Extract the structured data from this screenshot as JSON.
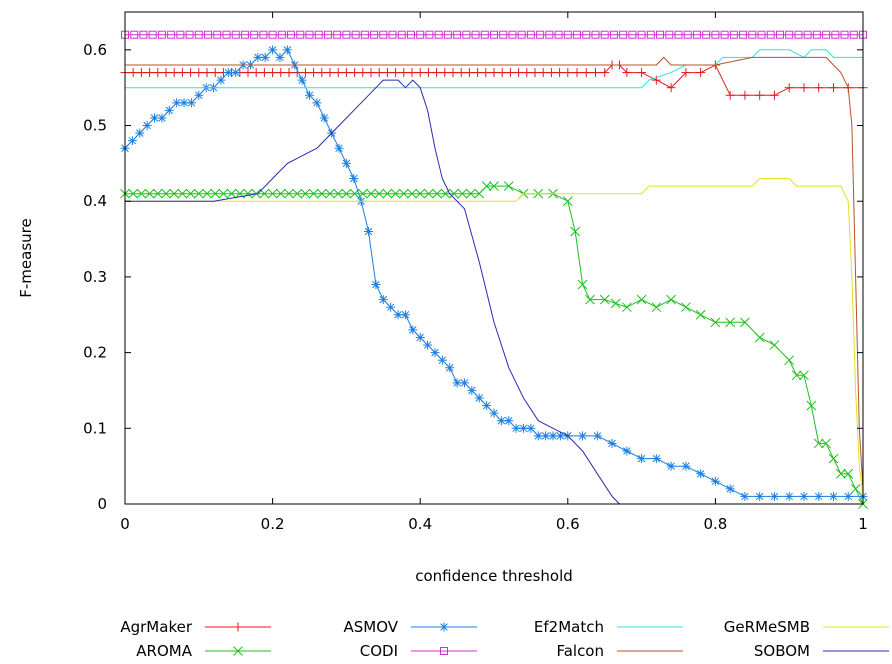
{
  "chart_data": {
    "type": "line",
    "title": "",
    "xlabel": "confidence threshold",
    "ylabel": "F-measure",
    "xlim": [
      0,
      1
    ],
    "ylim": [
      0,
      0.65
    ],
    "grid": false,
    "legend_position": "bottom",
    "x_ticks": [
      {
        "value": 0,
        "label": "0"
      },
      {
        "value": 0.2,
        "label": "0.2"
      },
      {
        "value": 0.4,
        "label": "0.4"
      },
      {
        "value": 0.6,
        "label": "0.6"
      },
      {
        "value": 0.8,
        "label": "0.8"
      },
      {
        "value": 1,
        "label": "1"
      }
    ],
    "y_ticks": [
      {
        "value": 0,
        "label": "0"
      },
      {
        "value": 0.1,
        "label": "0.1"
      },
      {
        "value": 0.2,
        "label": "0.2"
      },
      {
        "value": 0.3,
        "label": "0.3"
      },
      {
        "value": 0.4,
        "label": "0.4"
      },
      {
        "value": 0.5,
        "label": "0.5"
      },
      {
        "value": 0.6,
        "label": "0.6"
      }
    ],
    "series": [
      {
        "name": "AgrMaker",
        "color": "#e41a1c",
        "marker": "plus",
        "x": [
          0,
          0.1,
          0.2,
          0.3,
          0.4,
          0.5,
          0.6,
          0.65,
          0.66,
          0.67,
          0.68,
          0.7,
          0.72,
          0.74,
          0.76,
          0.78,
          0.8,
          0.82,
          0.84,
          0.86,
          0.88,
          0.9,
          0.92,
          0.94,
          0.96,
          0.98,
          1.0
        ],
        "values": [
          0.57,
          0.57,
          0.57,
          0.57,
          0.57,
          0.57,
          0.57,
          0.57,
          0.58,
          0.58,
          0.57,
          0.57,
          0.56,
          0.55,
          0.57,
          0.57,
          0.58,
          0.54,
          0.54,
          0.54,
          0.54,
          0.55,
          0.55,
          0.55,
          0.55,
          0.55,
          0.55
        ]
      },
      {
        "name": "AROMA",
        "color": "#1fbf1f",
        "marker": "x",
        "x": [
          0,
          0.1,
          0.2,
          0.3,
          0.4,
          0.48,
          0.49,
          0.5,
          0.52,
          0.54,
          0.56,
          0.58,
          0.6,
          0.61,
          0.62,
          0.63,
          0.65,
          0.68,
          0.7,
          0.72,
          0.74,
          0.76,
          0.78,
          0.8,
          0.82,
          0.84,
          0.86,
          0.88,
          0.9,
          0.91,
          0.92,
          0.93,
          0.94,
          0.95,
          0.96,
          0.97,
          0.98,
          0.99,
          1.0
        ],
        "values": [
          0.41,
          0.41,
          0.41,
          0.41,
          0.41,
          0.41,
          0.42,
          0.42,
          0.42,
          0.41,
          0.41,
          0.41,
          0.4,
          0.36,
          0.29,
          0.27,
          0.27,
          0.26,
          0.27,
          0.26,
          0.27,
          0.26,
          0.25,
          0.24,
          0.24,
          0.24,
          0.22,
          0.21,
          0.19,
          0.17,
          0.17,
          0.13,
          0.08,
          0.08,
          0.06,
          0.04,
          0.04,
          0.02,
          0.0
        ]
      },
      {
        "name": "ASMOV",
        "color": "#1c7fe0",
        "marker": "star",
        "x": [
          0,
          0.01,
          0.02,
          0.03,
          0.04,
          0.05,
          0.06,
          0.07,
          0.08,
          0.09,
          0.1,
          0.11,
          0.12,
          0.13,
          0.14,
          0.15,
          0.16,
          0.17,
          0.18,
          0.19,
          0.2,
          0.21,
          0.22,
          0.23,
          0.24,
          0.25,
          0.26,
          0.27,
          0.28,
          0.29,
          0.3,
          0.31,
          0.32,
          0.33,
          0.34,
          0.35,
          0.36,
          0.37,
          0.38,
          0.39,
          0.4,
          0.41,
          0.42,
          0.43,
          0.44,
          0.45,
          0.46,
          0.47,
          0.48,
          0.49,
          0.5,
          0.51,
          0.52,
          0.53,
          0.54,
          0.55,
          0.56,
          0.57,
          0.58,
          0.59,
          0.6,
          0.62,
          0.64,
          0.66,
          0.68,
          0.7,
          0.72,
          0.74,
          0.76,
          0.78,
          0.8,
          0.82,
          0.84,
          0.86,
          0.88,
          0.9,
          0.92,
          0.94,
          0.96,
          0.98,
          1.0
        ],
        "values": [
          0.47,
          0.48,
          0.49,
          0.5,
          0.51,
          0.51,
          0.52,
          0.53,
          0.53,
          0.53,
          0.54,
          0.55,
          0.55,
          0.56,
          0.57,
          0.57,
          0.58,
          0.58,
          0.59,
          0.59,
          0.6,
          0.59,
          0.6,
          0.58,
          0.56,
          0.54,
          0.53,
          0.51,
          0.49,
          0.47,
          0.45,
          0.43,
          0.4,
          0.36,
          0.29,
          0.27,
          0.26,
          0.25,
          0.25,
          0.23,
          0.22,
          0.21,
          0.2,
          0.19,
          0.18,
          0.16,
          0.16,
          0.15,
          0.14,
          0.13,
          0.12,
          0.11,
          0.11,
          0.1,
          0.1,
          0.1,
          0.09,
          0.09,
          0.09,
          0.09,
          0.09,
          0.09,
          0.09,
          0.08,
          0.07,
          0.06,
          0.06,
          0.05,
          0.05,
          0.04,
          0.03,
          0.02,
          0.01,
          0.01,
          0.01,
          0.01,
          0.01,
          0.01,
          0.01,
          0.01,
          0.01
        ]
      },
      {
        "name": "CODI",
        "color": "#cc33cc",
        "marker": "square",
        "x": [
          0,
          0.05,
          0.1,
          0.15,
          0.2,
          0.25,
          0.3,
          0.35,
          0.4,
          0.45,
          0.5,
          0.55,
          0.6,
          0.65,
          0.7,
          0.75,
          0.8,
          0.85,
          0.9,
          0.95,
          1.0
        ],
        "values": [
          0.62,
          0.62,
          0.62,
          0.62,
          0.62,
          0.62,
          0.62,
          0.62,
          0.62,
          0.62,
          0.62,
          0.62,
          0.62,
          0.62,
          0.62,
          0.62,
          0.62,
          0.62,
          0.62,
          0.62,
          0.62
        ]
      },
      {
        "name": "Ef2Match",
        "color": "#2ee0e8",
        "marker": "none",
        "x": [
          0,
          0.7,
          0.71,
          0.74,
          0.76,
          0.8,
          0.81,
          0.83,
          0.85,
          0.86,
          0.9,
          0.92,
          0.93,
          0.95,
          0.96,
          1.0
        ],
        "values": [
          0.55,
          0.55,
          0.56,
          0.57,
          0.58,
          0.58,
          0.59,
          0.59,
          0.59,
          0.6,
          0.6,
          0.59,
          0.6,
          0.6,
          0.59,
          0.59
        ]
      },
      {
        "name": "Falcon",
        "color": "#b5532a",
        "marker": "none",
        "x": [
          0,
          0.72,
          0.73,
          0.74,
          0.8,
          0.85,
          0.87,
          0.95,
          0.97,
          0.98,
          0.985,
          0.99,
          0.995,
          1.0
        ],
        "values": [
          0.58,
          0.58,
          0.59,
          0.58,
          0.58,
          0.59,
          0.59,
          0.59,
          0.57,
          0.55,
          0.5,
          0.3,
          0.1,
          0.02
        ]
      },
      {
        "name": "GeRMeSMB",
        "color": "#e0e020",
        "marker": "none",
        "x": [
          0,
          0.53,
          0.54,
          0.7,
          0.71,
          0.85,
          0.86,
          0.9,
          0.91,
          0.97,
          0.98,
          0.985,
          0.99,
          0.995,
          1.0
        ],
        "values": [
          0.4,
          0.4,
          0.41,
          0.41,
          0.42,
          0.42,
          0.43,
          0.43,
          0.42,
          0.42,
          0.4,
          0.3,
          0.15,
          0.05,
          0.01
        ]
      },
      {
        "name": "SOBOM",
        "color": "#2b2bb0",
        "marker": "none",
        "x": [
          0,
          0.12,
          0.18,
          0.2,
          0.22,
          0.24,
          0.26,
          0.28,
          0.3,
          0.32,
          0.34,
          0.35,
          0.36,
          0.37,
          0.38,
          0.39,
          0.4,
          0.41,
          0.42,
          0.43,
          0.44,
          0.46,
          0.48,
          0.5,
          0.52,
          0.54,
          0.56,
          0.58,
          0.6,
          0.62,
          0.64,
          0.66,
          0.67
        ],
        "values": [
          0.4,
          0.4,
          0.41,
          0.43,
          0.45,
          0.46,
          0.47,
          0.49,
          0.51,
          0.53,
          0.55,
          0.56,
          0.56,
          0.56,
          0.55,
          0.56,
          0.55,
          0.52,
          0.47,
          0.43,
          0.41,
          0.39,
          0.32,
          0.24,
          0.18,
          0.14,
          0.11,
          0.1,
          0.09,
          0.07,
          0.04,
          0.01,
          0.0
        ]
      }
    ]
  }
}
